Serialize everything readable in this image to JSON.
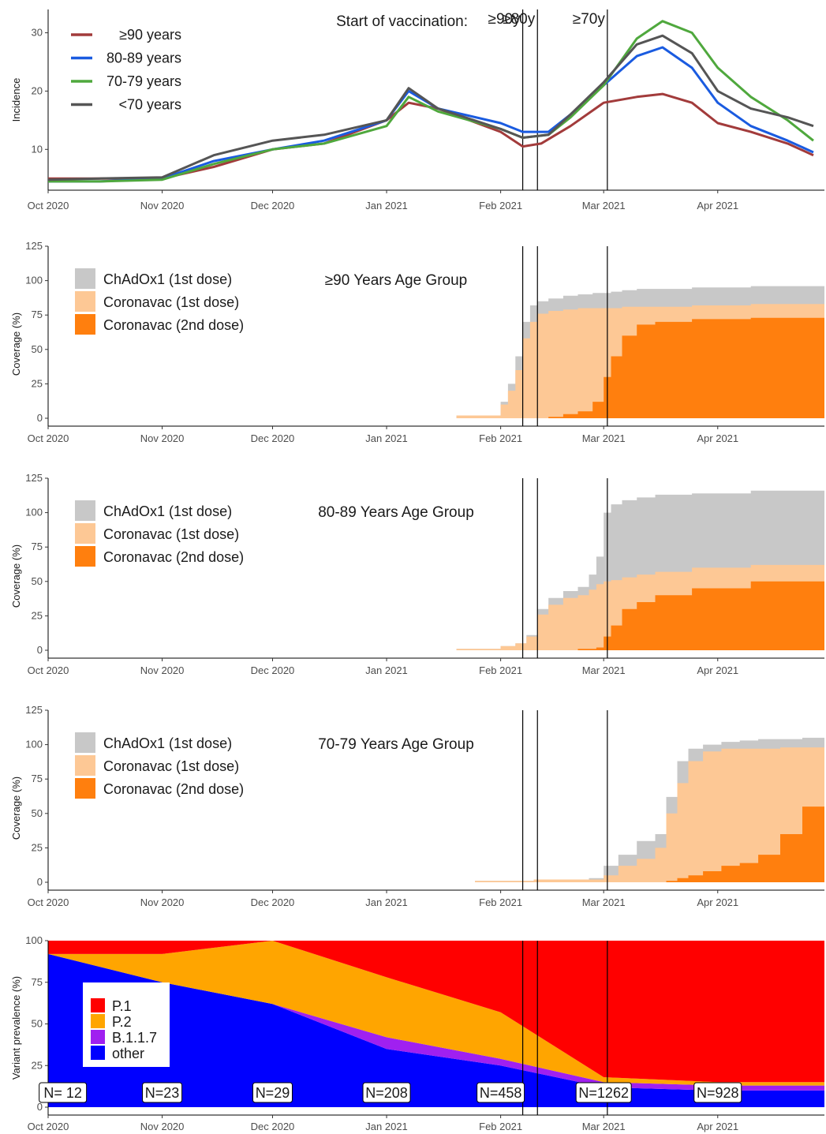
{
  "x_tick_labels": [
    "Oct 2020",
    "Nov 2020",
    "Dec 2020",
    "Jan 2021",
    "Feb 2021",
    "Mar 2021",
    "Apr 2021"
  ],
  "vaccination_lines": [
    {
      "date": "2021-02-07",
      "label": "≥90y"
    },
    {
      "date": "2021-02-11",
      "label": "≥80y"
    },
    {
      "date": "2021-03-02",
      "label": "≥70y"
    }
  ],
  "vaccination_start_label": "Start of vaccination:",
  "coverage_legend": [
    "ChAdOx1 (1st dose)",
    "Coronavac (1st dose)",
    "Coronavac (2nd dose)"
  ],
  "coverage_ylabel": "Coverage (%)",
  "colors": {
    "ge90": "#A23B3B",
    "a8089": "#1A5BE0",
    "a7079": "#4FA83D",
    "lt70": "#555555",
    "chadox": "#C8C8C8",
    "corona1": "#FDC895",
    "corona2": "#FF7F0E",
    "p1": "#FF0000",
    "p2": "#FFA500",
    "b117": "#A020F0",
    "other": "#0000FF"
  },
  "chart_data": [
    {
      "type": "line",
      "ylabel": "Incidence",
      "xrange": [
        "2020-10-01",
        "2021-04-30"
      ],
      "ylim": [
        3,
        34
      ],
      "yticks": [
        10,
        20,
        30
      ],
      "series": [
        {
          "name": "≥90 years",
          "key": "ge90",
          "x": [
            "2020-10-01",
            "2020-10-15",
            "2020-11-01",
            "2020-11-15",
            "2020-12-01",
            "2020-12-15",
            "2021-01-01",
            "2021-01-07",
            "2021-01-15",
            "2021-02-01",
            "2021-02-07",
            "2021-02-12",
            "2021-02-20",
            "2021-03-01",
            "2021-03-10",
            "2021-03-17",
            "2021-03-25",
            "2021-04-01",
            "2021-04-10",
            "2021-04-20",
            "2021-04-27"
          ],
          "y": [
            5,
            5,
            5,
            7,
            10,
            11,
            15,
            18,
            17,
            13,
            10.5,
            11,
            14,
            18,
            19,
            19.5,
            18,
            14.5,
            13,
            11,
            9
          ]
        },
        {
          "name": "80-89 years",
          "key": "a8089",
          "x": [
            "2020-10-01",
            "2020-10-15",
            "2020-11-01",
            "2020-11-15",
            "2020-12-01",
            "2020-12-15",
            "2021-01-01",
            "2021-01-07",
            "2021-01-15",
            "2021-02-01",
            "2021-02-07",
            "2021-02-14",
            "2021-02-20",
            "2021-03-01",
            "2021-03-10",
            "2021-03-17",
            "2021-03-25",
            "2021-04-01",
            "2021-04-10",
            "2021-04-20",
            "2021-04-27"
          ],
          "y": [
            4.5,
            4.5,
            5,
            8,
            10,
            11.5,
            15,
            20,
            17,
            14.5,
            13,
            13,
            16,
            21,
            26,
            27.5,
            24,
            18,
            14,
            11.5,
            9.5
          ]
        },
        {
          "name": "70-79 years",
          "key": "a7079",
          "x": [
            "2020-10-01",
            "2020-10-15",
            "2020-11-01",
            "2020-11-15",
            "2020-12-01",
            "2020-12-15",
            "2021-01-01",
            "2021-01-07",
            "2021-01-15",
            "2021-02-01",
            "2021-02-07",
            "2021-02-14",
            "2021-02-20",
            "2021-03-01",
            "2021-03-10",
            "2021-03-17",
            "2021-03-25",
            "2021-04-01",
            "2021-04-10",
            "2021-04-20",
            "2021-04-27"
          ],
          "y": [
            4.5,
            4.5,
            4.8,
            7.5,
            10,
            11,
            14,
            19,
            16.5,
            13.5,
            12,
            12.5,
            15.5,
            21,
            29,
            32,
            30,
            24,
            19,
            15,
            11.5
          ]
        },
        {
          "name": "<70 years",
          "key": "lt70",
          "x": [
            "2020-10-01",
            "2020-10-15",
            "2020-11-01",
            "2020-11-15",
            "2020-12-01",
            "2020-12-15",
            "2021-01-01",
            "2021-01-07",
            "2021-01-15",
            "2021-02-01",
            "2021-02-07",
            "2021-02-14",
            "2021-02-20",
            "2021-03-01",
            "2021-03-10",
            "2021-03-17",
            "2021-03-25",
            "2021-04-01",
            "2021-04-10",
            "2021-04-20",
            "2021-04-27"
          ],
          "y": [
            4.8,
            5,
            5.2,
            9,
            11.5,
            12.5,
            15,
            20.5,
            17,
            13.5,
            12,
            12.5,
            16,
            21.5,
            28,
            29.5,
            26.5,
            20,
            17,
            15.5,
            14
          ]
        }
      ]
    },
    {
      "type": "area",
      "annotation": "≥90 Years Age Group",
      "ylim": [
        0,
        125
      ],
      "yticks": [
        0,
        25,
        50,
        75,
        100,
        125
      ],
      "xrange": [
        "2020-10-01",
        "2021-04-30"
      ],
      "x": [
        "2021-01-20",
        "2021-02-01",
        "2021-02-03",
        "2021-02-05",
        "2021-02-07",
        "2021-02-09",
        "2021-02-11",
        "2021-02-14",
        "2021-02-18",
        "2021-02-22",
        "2021-02-26",
        "2021-03-01",
        "2021-03-03",
        "2021-03-06",
        "2021-03-10",
        "2021-03-15",
        "2021-03-25",
        "2021-04-10",
        "2021-04-30"
      ],
      "series": [
        {
          "name": "Coronavac (2nd dose)",
          "values": [
            0,
            0,
            0,
            0,
            0,
            0,
            0,
            1,
            3,
            5,
            12,
            30,
            45,
            60,
            68,
            70,
            72,
            73,
            74
          ]
        },
        {
          "name": "Coronavac (1st dose)",
          "values": [
            2,
            10,
            20,
            35,
            58,
            70,
            76,
            78,
            79,
            80,
            80,
            80,
            80,
            81,
            81,
            81,
            82,
            83,
            84
          ]
        },
        {
          "name": "ChAdOx1 (1st dose)",
          "values": [
            2,
            12,
            25,
            45,
            70,
            82,
            85,
            87,
            89,
            90,
            91,
            91,
            92,
            93,
            94,
            94,
            95,
            96,
            97
          ]
        }
      ]
    },
    {
      "type": "area",
      "annotation": "80-89 Years Age Group",
      "ylim": [
        0,
        125
      ],
      "yticks": [
        0,
        25,
        50,
        75,
        100,
        125
      ],
      "xrange": [
        "2020-10-01",
        "2021-04-30"
      ],
      "x": [
        "2021-01-20",
        "2021-02-01",
        "2021-02-05",
        "2021-02-08",
        "2021-02-11",
        "2021-02-14",
        "2021-02-18",
        "2021-02-22",
        "2021-02-25",
        "2021-02-27",
        "2021-03-01",
        "2021-03-03",
        "2021-03-06",
        "2021-03-10",
        "2021-03-15",
        "2021-03-25",
        "2021-04-10",
        "2021-04-30"
      ],
      "series": [
        {
          "name": "Coronavac (2nd dose)",
          "values": [
            0,
            0,
            0,
            0,
            0,
            0,
            0,
            1,
            1,
            2,
            10,
            18,
            30,
            35,
            40,
            45,
            50,
            52
          ]
        },
        {
          "name": "Coronavac (1st dose)",
          "values": [
            1,
            3,
            5,
            10,
            26,
            33,
            38,
            40,
            44,
            48,
            50,
            51,
            53,
            55,
            57,
            60,
            62,
            63
          ]
        },
        {
          "name": "ChAdOx1 (1st dose)",
          "values": [
            1,
            3,
            5,
            11,
            30,
            38,
            43,
            46,
            55,
            68,
            100,
            106,
            109,
            111,
            113,
            114,
            116,
            117
          ]
        }
      ]
    },
    {
      "type": "area",
      "annotation": "70-79 Years Age Group",
      "ylim": [
        0,
        125
      ],
      "yticks": [
        0,
        25,
        50,
        75,
        100,
        125
      ],
      "xrange": [
        "2020-10-01",
        "2021-04-30"
      ],
      "x": [
        "2021-01-25",
        "2021-02-10",
        "2021-02-25",
        "2021-03-01",
        "2021-03-05",
        "2021-03-10",
        "2021-03-15",
        "2021-03-18",
        "2021-03-21",
        "2021-03-24",
        "2021-03-28",
        "2021-04-02",
        "2021-04-07",
        "2021-04-12",
        "2021-04-18",
        "2021-04-24",
        "2021-04-30"
      ],
      "series": [
        {
          "name": "Coronavac (2nd dose)",
          "values": [
            0,
            0,
            0,
            0,
            0,
            0,
            0,
            1,
            3,
            5,
            8,
            12,
            14,
            20,
            35,
            55,
            70
          ]
        },
        {
          "name": "Coronavac (1st dose)",
          "values": [
            1,
            2,
            2,
            5,
            12,
            17,
            25,
            50,
            72,
            88,
            95,
            97,
            97,
            97,
            98,
            98,
            98
          ]
        },
        {
          "name": "ChAdOx1 (1st dose)",
          "values": [
            1,
            2,
            3,
            12,
            20,
            30,
            35,
            62,
            88,
            97,
            100,
            102,
            103,
            104,
            104,
            105,
            105
          ]
        }
      ]
    },
    {
      "type": "area",
      "ylabel": "Variant prevalence (%)",
      "ylim": [
        0,
        100
      ],
      "yticks": [
        0,
        25,
        50,
        75,
        100
      ],
      "xrange": [
        "2020-10-01",
        "2021-04-30"
      ],
      "x": [
        "2020-10-01",
        "2020-11-01",
        "2020-12-01",
        "2021-01-01",
        "2021-02-01",
        "2021-03-01",
        "2021-04-01",
        "2021-04-30"
      ],
      "series": [
        {
          "name": "other",
          "values": [
            92,
            75,
            62,
            35,
            25,
            12,
            10,
            10
          ]
        },
        {
          "name": "B.1.1.7",
          "values": [
            0,
            0,
            0,
            7,
            4,
            3,
            3,
            3
          ]
        },
        {
          "name": "P.2",
          "values": [
            0,
            17,
            38,
            36,
            28,
            3,
            2,
            2
          ]
        },
        {
          "name": "P.1",
          "values": [
            8,
            8,
            0,
            22,
            43,
            82,
            85,
            85
          ]
        }
      ],
      "sample_sizes": [
        {
          "date": "2020-10-05",
          "label": "N= 12"
        },
        {
          "date": "2020-11-01",
          "label": "N=23"
        },
        {
          "date": "2020-12-01",
          "label": "N=29"
        },
        {
          "date": "2021-01-01",
          "label": "N=208"
        },
        {
          "date": "2021-02-01",
          "label": "N=458"
        },
        {
          "date": "2021-03-01",
          "label": "N=1262"
        },
        {
          "date": "2021-04-01",
          "label": "N=928"
        }
      ]
    }
  ]
}
